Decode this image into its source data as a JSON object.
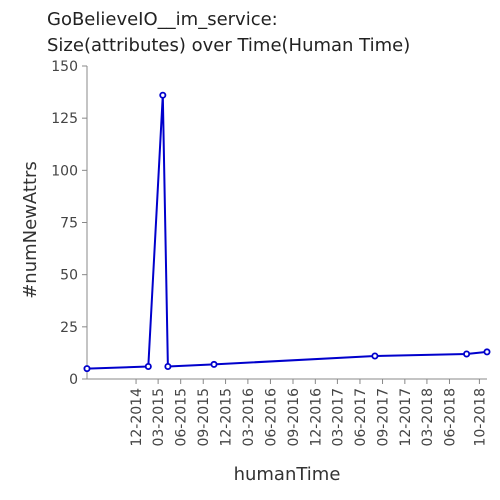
{
  "chart_data": {
    "type": "line",
    "title_lines": [
      "GoBelieveIO__im_service:",
      "Size(attributes) over Time(Human Time)"
    ],
    "xlabel": "humanTime",
    "ylabel": "#numNewAttrs",
    "ylim": [
      0,
      150
    ],
    "y_ticks": [
      0,
      25,
      50,
      75,
      100,
      125,
      150
    ],
    "x_ticks": [
      "12-2014",
      "03-2015",
      "06-2015",
      "09-2015",
      "12-2015",
      "03-2016",
      "06-2016",
      "09-2016",
      "12-2016",
      "03-2017",
      "06-2017",
      "09-2017",
      "12-2017",
      "03-2018",
      "06-2018",
      "10-2018"
    ],
    "x_tick_dates": [
      "2014-12-01",
      "2015-03-01",
      "2015-06-01",
      "2015-09-01",
      "2015-12-01",
      "2016-03-01",
      "2016-06-01",
      "2016-09-01",
      "2016-12-01",
      "2017-03-01",
      "2017-06-01",
      "2017-09-01",
      "2017-12-01",
      "2018-03-01",
      "2018-06-01",
      "2018-10-01"
    ],
    "x_range": [
      "2014-05-15",
      "2018-11-01"
    ],
    "series": [
      {
        "color": "#0000cc",
        "points": [
          {
            "x": "2014-05-15",
            "y": 5
          },
          {
            "x": "2015-01-20",
            "y": 6
          },
          {
            "x": "2015-03-20",
            "y": 136
          },
          {
            "x": "2015-04-10",
            "y": 6
          },
          {
            "x": "2015-10-15",
            "y": 7
          },
          {
            "x": "2017-08-01",
            "y": 11
          },
          {
            "x": "2018-08-10",
            "y": 12
          },
          {
            "x": "2018-11-01",
            "y": 13
          }
        ]
      }
    ],
    "grid": false,
    "legend": "none"
  }
}
